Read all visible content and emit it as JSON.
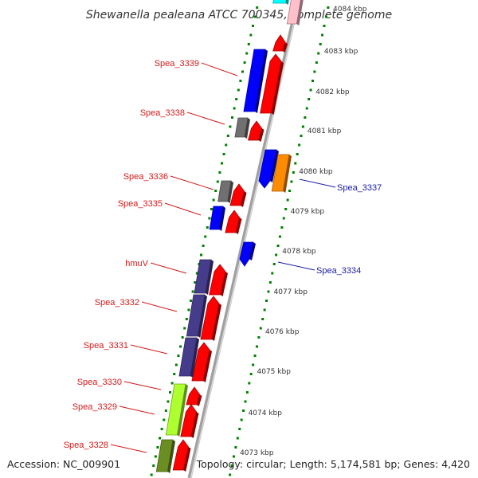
{
  "title": "Shewanella pealeana ATCC 700345, complete genome",
  "accession": "Accession: NC_009901",
  "summary": "Topology: circular; Length: 5,174,581 bp; Genes: 4,420",
  "colors": {
    "reverse_label": "#d41a1a",
    "forward_label": "#1a1aa8",
    "red": "#ff0000",
    "blue": "#0000ff",
    "gray": "#707070",
    "purple": "#463c8c",
    "orange": "#ff8c00",
    "lime": "#adff2f",
    "olive": "#6b8e23",
    "cyan": "#00ffff",
    "pink": "#ffc0cb",
    "backbone": "#a0a0a0",
    "ticks": "#008000"
  },
  "scale": [
    {
      "label": "4084 kbp",
      "faded": true
    },
    {
      "label": "4083 kbp"
    },
    {
      "label": "4082 kbp"
    },
    {
      "label": "4081 kbp"
    },
    {
      "label": "4080 kbp"
    },
    {
      "label": "4079 kbp"
    },
    {
      "label": "4078 kbp"
    },
    {
      "label": "4077 kbp"
    },
    {
      "label": "4076 kbp"
    },
    {
      "label": "4075 kbp"
    },
    {
      "label": "4074 kbp"
    },
    {
      "label": "4073 kbp"
    }
  ],
  "gene_labels": [
    {
      "name": "Spea_3339",
      "strand": "reverse"
    },
    {
      "name": "Spea_3338",
      "strand": "reverse"
    },
    {
      "name": "Spea_3336",
      "strand": "reverse"
    },
    {
      "name": "Spea_3335",
      "strand": "reverse"
    },
    {
      "name": "hmuV",
      "strand": "reverse"
    },
    {
      "name": "Spea_3332",
      "strand": "reverse"
    },
    {
      "name": "Spea_3331",
      "strand": "reverse"
    },
    {
      "name": "Spea_3330",
      "strand": "reverse"
    },
    {
      "name": "Spea_3329",
      "strand": "reverse"
    },
    {
      "name": "Spea_3328",
      "strand": "reverse"
    },
    {
      "name": "Spea_3337",
      "strand": "forward"
    },
    {
      "name": "Spea_3334",
      "strand": "forward"
    }
  ]
}
